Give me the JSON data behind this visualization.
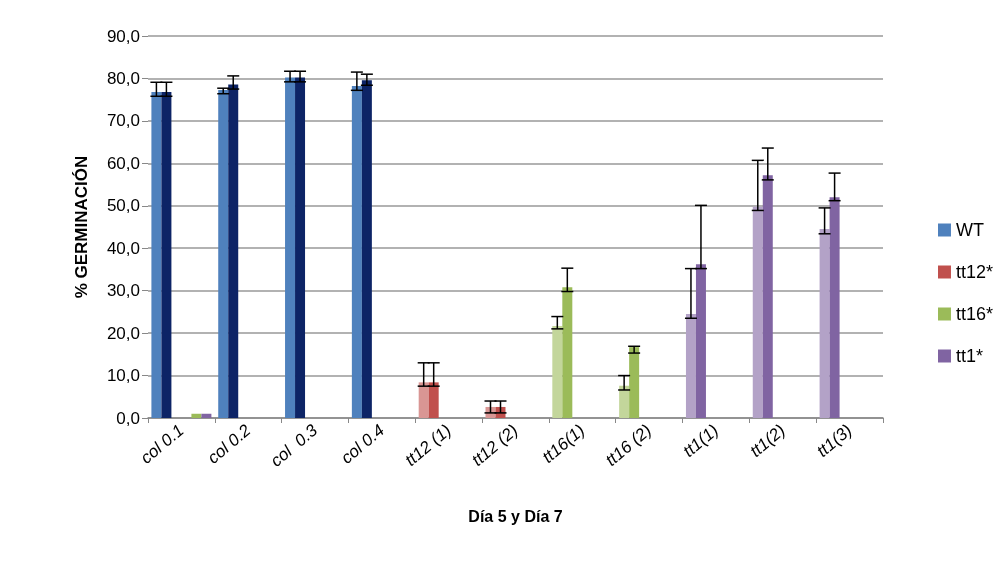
{
  "chart_data": {
    "type": "bar",
    "xlabel": "Día 5 y Día 7",
    "ylabel": "% GERMINACIÓN",
    "categories": [
      "col 0.1",
      "col 0.2",
      "col  0.3",
      "col 0.4",
      "tt12 (1)",
      "tt12 (2)",
      "tt16(1)",
      "tt16 (2)",
      "tt1(1)",
      "tt1(2)",
      "tt1(3)"
    ],
    "series": [
      {
        "colors": [
          "#4f81bd",
          "#4f81bd",
          "#4f81bd",
          "#4f81bd",
          "#d99694",
          "#d99694",
          "#c3d69b",
          "#c3d69b",
          "#b3a2c7",
          "#b3a2c7",
          "#b3a2c7"
        ],
        "values": [
          76.8,
          77.3,
          80.2,
          78.2,
          8.4,
          2.6,
          21.7,
          7.6,
          24.5,
          49.8,
          44.5
        ],
        "errors": [
          [
            75.8,
            79.1
          ],
          [
            76.4,
            77.7
          ],
          [
            79.2,
            81.7
          ],
          [
            77.2,
            81.5
          ],
          [
            7.5,
            13.0
          ],
          [
            1.2,
            4.0
          ],
          [
            21.0,
            23.9
          ],
          [
            6.6,
            10.0
          ],
          [
            23.5,
            35.2
          ],
          [
            48.9,
            60.7
          ],
          [
            43.4,
            49.5
          ]
        ]
      },
      {
        "colors": [
          "#0d2466",
          "#0d2466",
          "#0d2466",
          "#0d2466",
          "#c0504d",
          "#c0504d",
          "#9bbb59",
          "#9bbb59",
          "#8064a2",
          "#8064a2",
          "#8064a2"
        ],
        "values": [
          76.8,
          78.6,
          80.2,
          79.6,
          8.4,
          2.6,
          30.8,
          16.7,
          36.2,
          57.2,
          52.0
        ],
        "errors": [
          [
            75.8,
            79.1
          ],
          [
            77.5,
            80.6
          ],
          [
            79.2,
            81.7
          ],
          [
            78.4,
            81.0
          ],
          [
            7.5,
            13.0
          ],
          [
            1.2,
            4.0
          ],
          [
            29.8,
            35.3
          ],
          [
            15.3,
            16.9
          ],
          [
            35.2,
            50.1
          ],
          [
            56.1,
            63.6
          ],
          [
            51.2,
            57.7
          ]
        ]
      },
      {
        "name": "WT",
        "color": "#4f81bd",
        "values": [
          null,
          null,
          null,
          null,
          null,
          null,
          null,
          null,
          null,
          null,
          null
        ]
      },
      {
        "name": "tt12*",
        "color": "#c0504d",
        "values": [
          null,
          null,
          null,
          null,
          null,
          null,
          null,
          null,
          null,
          null,
          null
        ]
      },
      {
        "name": "tt16*",
        "color": "#9bbb59",
        "values": [
          1.0,
          null,
          null,
          null,
          null,
          null,
          null,
          null,
          null,
          null,
          null
        ]
      },
      {
        "name": "tt1*",
        "color": "#8064a2",
        "values": [
          1.0,
          null,
          null,
          null,
          null,
          null,
          null,
          null,
          null,
          null,
          null
        ]
      }
    ],
    "ylim": [
      0,
      90
    ],
    "yticks": [
      {
        "value": 0,
        "label": "0,0"
      },
      {
        "value": 10,
        "label": "10,0"
      },
      {
        "value": 20,
        "label": "20,0"
      },
      {
        "value": 30,
        "label": "30,0"
      },
      {
        "value": 40,
        "label": "40,0"
      },
      {
        "value": 50,
        "label": "50,0"
      },
      {
        "value": 60,
        "label": "60,0"
      },
      {
        "value": 70,
        "label": "70,0"
      },
      {
        "value": 80,
        "label": "80,0"
      },
      {
        "value": 90,
        "label": "90,0"
      }
    ],
    "grid": "y",
    "legend": "right"
  }
}
